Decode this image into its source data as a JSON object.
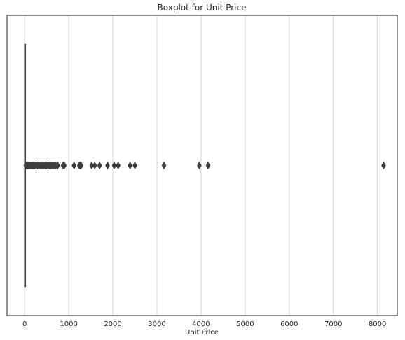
{
  "chart_data": {
    "type": "boxplot",
    "title": "Boxplot for Unit Price",
    "xlabel": "Unit Price",
    "ylabel": "",
    "orientation": "horizontal",
    "xlim": [
      -400,
      8450
    ],
    "xticks": [
      0,
      1000,
      2000,
      3000,
      4000,
      5000,
      6000,
      7000,
      8000
    ],
    "xtick_labels": [
      "0",
      "1000",
      "2000",
      "3000",
      "4000",
      "5000",
      "6000",
      "7000",
      "8000"
    ],
    "grid": {
      "x": true,
      "y": false
    },
    "box": {
      "q1": 1,
      "median": 3,
      "q3": 5,
      "whisker_low": 0,
      "whisker_high": 10
    },
    "outliers": [
      25,
      40,
      55,
      70,
      85,
      100,
      120,
      140,
      160,
      180,
      200,
      230,
      260,
      290,
      320,
      350,
      380,
      410,
      440,
      470,
      500,
      530,
      560,
      590,
      620,
      650,
      680,
      710,
      750,
      870,
      900,
      1120,
      1240,
      1260,
      1280,
      1520,
      1590,
      1700,
      1880,
      2030,
      2120,
      2390,
      2500,
      3160,
      3960,
      4160,
      8140
    ],
    "colors": {
      "box": "#2b2b2b",
      "outlier": "#3d3d3d",
      "grid": "#d0d0d0",
      "frame": "#262626"
    }
  }
}
